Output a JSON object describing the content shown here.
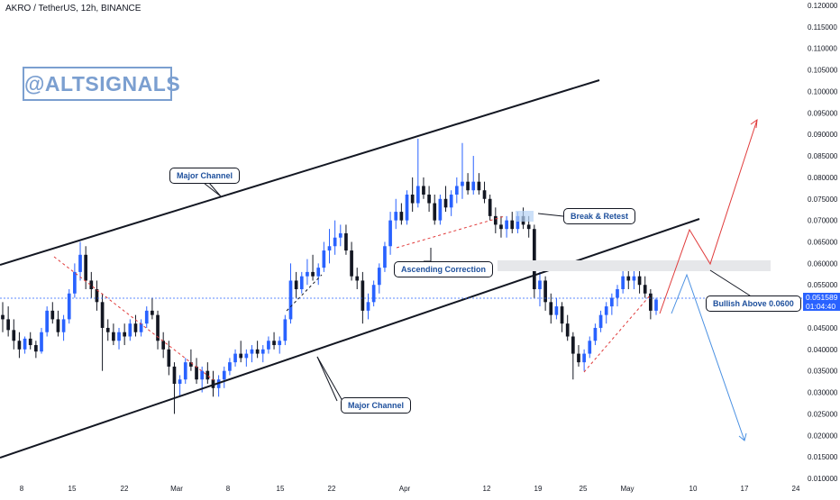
{
  "header": {
    "symbol": "AKRO / TetherUS, 12h, BINANCE"
  },
  "watermark": "@ALTSIGNALS",
  "annotations": {
    "major_channel_top": "Major Channel",
    "major_channel_bottom": "Major Channel",
    "ascending_correction": "Ascending Correction",
    "break_retest": "Break & Retest",
    "bullish_above": "Bullish Above 0.0600"
  },
  "current_price": {
    "value": "0.051589",
    "countdown": "01:04:40"
  },
  "colors": {
    "up": "#2962ff",
    "down": "#131722",
    "accent_red": "#e03b3b",
    "accent_blue": "#4a90e2",
    "price_line": "#2962ff"
  },
  "chart_data": {
    "type": "candlestick",
    "y_axis": {
      "min": 0.01,
      "max": 0.12,
      "ticks": [
        "0.120000",
        "0.115000",
        "0.110000",
        "0.105000",
        "0.100000",
        "0.095000",
        "0.090000",
        "0.085000",
        "0.080000",
        "0.075000",
        "0.070000",
        "0.065000",
        "0.060000",
        "0.055000",
        "0.050000",
        "0.045000",
        "0.040000",
        "0.035000",
        "0.030000",
        "0.025000",
        "0.020000",
        "0.015000",
        "0.010000"
      ]
    },
    "x_axis": {
      "ticks": [
        "8",
        "15",
        "22",
        "Mar",
        "8",
        "15",
        "22",
        "Apr",
        "12",
        "19",
        "25",
        "May",
        "10",
        "17",
        "24"
      ]
    },
    "candles": [
      [
        0.048,
        0.051,
        0.044,
        0.047
      ],
      [
        0.047,
        0.05,
        0.043,
        0.0445
      ],
      [
        0.0445,
        0.047,
        0.04,
        0.042
      ],
      [
        0.042,
        0.044,
        0.038,
        0.04
      ],
      [
        0.04,
        0.043,
        0.039,
        0.0425
      ],
      [
        0.0425,
        0.044,
        0.04,
        0.041
      ],
      [
        0.041,
        0.042,
        0.038,
        0.0395
      ],
      [
        0.0395,
        0.045,
        0.039,
        0.044
      ],
      [
        0.044,
        0.05,
        0.043,
        0.049
      ],
      [
        0.049,
        0.051,
        0.046,
        0.047
      ],
      [
        0.047,
        0.049,
        0.043,
        0.044
      ],
      [
        0.044,
        0.048,
        0.042,
        0.047
      ],
      [
        0.047,
        0.054,
        0.046,
        0.053
      ],
      [
        0.053,
        0.06,
        0.052,
        0.058
      ],
      [
        0.058,
        0.065,
        0.056,
        0.062
      ],
      [
        0.062,
        0.064,
        0.054,
        0.056
      ],
      [
        0.056,
        0.058,
        0.052,
        0.054
      ],
      [
        0.054,
        0.056,
        0.049,
        0.051
      ],
      [
        0.051,
        0.053,
        0.035,
        0.045
      ],
      [
        0.045,
        0.047,
        0.042,
        0.044
      ],
      [
        0.044,
        0.046,
        0.041,
        0.042
      ],
      [
        0.042,
        0.045,
        0.04,
        0.044
      ],
      [
        0.044,
        0.046,
        0.041,
        0.043
      ],
      [
        0.043,
        0.047,
        0.042,
        0.046
      ],
      [
        0.046,
        0.048,
        0.043,
        0.044
      ],
      [
        0.044,
        0.047,
        0.043,
        0.046
      ],
      [
        0.046,
        0.05,
        0.045,
        0.049
      ],
      [
        0.049,
        0.052,
        0.047,
        0.048
      ],
      [
        0.048,
        0.049,
        0.04,
        0.042
      ],
      [
        0.042,
        0.044,
        0.038,
        0.04
      ],
      [
        0.04,
        0.042,
        0.034,
        0.036
      ],
      [
        0.036,
        0.037,
        0.025,
        0.032
      ],
      [
        0.032,
        0.034,
        0.029,
        0.033
      ],
      [
        0.033,
        0.038,
        0.032,
        0.037
      ],
      [
        0.037,
        0.04,
        0.035,
        0.036
      ],
      [
        0.036,
        0.038,
        0.032,
        0.033
      ],
      [
        0.033,
        0.036,
        0.03,
        0.035
      ],
      [
        0.035,
        0.037,
        0.032,
        0.033
      ],
      [
        0.033,
        0.035,
        0.029,
        0.031
      ],
      [
        0.031,
        0.034,
        0.029,
        0.033
      ],
      [
        0.033,
        0.036,
        0.031,
        0.035
      ],
      [
        0.035,
        0.038,
        0.034,
        0.037
      ],
      [
        0.037,
        0.04,
        0.036,
        0.039
      ],
      [
        0.039,
        0.042,
        0.037,
        0.038
      ],
      [
        0.038,
        0.04,
        0.036,
        0.039
      ],
      [
        0.039,
        0.041,
        0.037,
        0.04
      ],
      [
        0.04,
        0.042,
        0.038,
        0.039
      ],
      [
        0.039,
        0.041,
        0.037,
        0.04
      ],
      [
        0.04,
        0.043,
        0.039,
        0.042
      ],
      [
        0.042,
        0.044,
        0.04,
        0.041
      ],
      [
        0.041,
        0.043,
        0.039,
        0.042
      ],
      [
        0.042,
        0.048,
        0.041,
        0.047
      ],
      [
        0.047,
        0.06,
        0.046,
        0.056
      ],
      [
        0.056,
        0.058,
        0.052,
        0.054
      ],
      [
        0.054,
        0.058,
        0.053,
        0.057
      ],
      [
        0.057,
        0.061,
        0.055,
        0.058
      ],
      [
        0.058,
        0.062,
        0.056,
        0.057
      ],
      [
        0.057,
        0.06,
        0.055,
        0.059
      ],
      [
        0.059,
        0.065,
        0.058,
        0.063
      ],
      [
        0.063,
        0.068,
        0.06,
        0.064
      ],
      [
        0.064,
        0.07,
        0.062,
        0.066
      ],
      [
        0.066,
        0.069,
        0.064,
        0.067
      ],
      [
        0.067,
        0.069,
        0.062,
        0.063
      ],
      [
        0.063,
        0.065,
        0.056,
        0.057
      ],
      [
        0.057,
        0.059,
        0.054,
        0.056
      ],
      [
        0.056,
        0.058,
        0.046,
        0.049
      ],
      [
        0.049,
        0.053,
        0.047,
        0.051
      ],
      [
        0.051,
        0.056,
        0.05,
        0.055
      ],
      [
        0.055,
        0.06,
        0.053,
        0.059
      ],
      [
        0.059,
        0.065,
        0.058,
        0.064
      ],
      [
        0.064,
        0.072,
        0.062,
        0.07
      ],
      [
        0.07,
        0.075,
        0.068,
        0.072
      ],
      [
        0.072,
        0.074,
        0.069,
        0.07
      ],
      [
        0.07,
        0.077,
        0.069,
        0.076
      ],
      [
        0.076,
        0.08,
        0.072,
        0.074
      ],
      [
        0.074,
        0.089,
        0.073,
        0.078
      ],
      [
        0.078,
        0.08,
        0.075,
        0.076
      ],
      [
        0.076,
        0.078,
        0.072,
        0.074
      ],
      [
        0.074,
        0.076,
        0.069,
        0.07
      ],
      [
        0.07,
        0.076,
        0.069,
        0.075
      ],
      [
        0.075,
        0.078,
        0.072,
        0.073
      ],
      [
        0.073,
        0.077,
        0.071,
        0.076
      ],
      [
        0.076,
        0.08,
        0.074,
        0.078
      ],
      [
        0.078,
        0.088,
        0.075,
        0.079
      ],
      [
        0.079,
        0.081,
        0.076,
        0.077
      ],
      [
        0.077,
        0.085,
        0.076,
        0.079
      ],
      [
        0.079,
        0.081,
        0.076,
        0.077
      ],
      [
        0.077,
        0.079,
        0.074,
        0.075
      ],
      [
        0.075,
        0.076,
        0.07,
        0.071
      ],
      [
        0.071,
        0.073,
        0.067,
        0.069
      ],
      [
        0.069,
        0.071,
        0.066,
        0.068
      ],
      [
        0.068,
        0.071,
        0.066,
        0.07
      ],
      [
        0.07,
        0.072,
        0.067,
        0.068
      ],
      [
        0.068,
        0.072,
        0.067,
        0.071
      ],
      [
        0.071,
        0.073,
        0.068,
        0.069
      ],
      [
        0.069,
        0.071,
        0.066,
        0.068
      ],
      [
        0.068,
        0.069,
        0.052,
        0.054
      ],
      [
        0.054,
        0.058,
        0.05,
        0.056
      ],
      [
        0.056,
        0.057,
        0.049,
        0.051
      ],
      [
        0.051,
        0.053,
        0.046,
        0.048
      ],
      [
        0.048,
        0.052,
        0.047,
        0.05
      ],
      [
        0.05,
        0.051,
        0.044,
        0.046
      ],
      [
        0.046,
        0.048,
        0.042,
        0.043
      ],
      [
        0.043,
        0.044,
        0.033,
        0.039
      ],
      [
        0.039,
        0.041,
        0.036,
        0.037
      ],
      [
        0.037,
        0.04,
        0.035,
        0.039
      ],
      [
        0.039,
        0.043,
        0.038,
        0.042
      ],
      [
        0.042,
        0.046,
        0.041,
        0.045
      ],
      [
        0.045,
        0.049,
        0.044,
        0.048
      ],
      [
        0.048,
        0.051,
        0.046,
        0.05
      ],
      [
        0.05,
        0.053,
        0.048,
        0.052
      ],
      [
        0.052,
        0.055,
        0.05,
        0.054
      ],
      [
        0.054,
        0.06,
        0.053,
        0.057
      ],
      [
        0.057,
        0.059,
        0.054,
        0.056
      ],
      [
        0.056,
        0.06,
        0.054,
        0.057
      ],
      [
        0.057,
        0.059,
        0.053,
        0.055
      ],
      [
        0.055,
        0.057,
        0.052,
        0.053
      ],
      [
        0.053,
        0.054,
        0.047,
        0.049
      ],
      [
        0.049,
        0.052,
        0.048,
        0.0516
      ]
    ]
  }
}
